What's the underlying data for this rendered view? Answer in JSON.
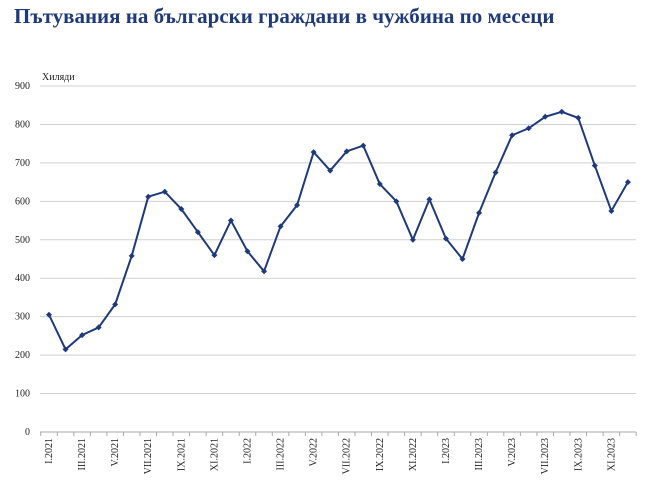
{
  "title": "Пътувания на български граждани в чужбина по месеци",
  "chart_data": {
    "type": "line",
    "title": "Пътувания на български граждани в чужбина по месеци",
    "ylabel": "Хиляди",
    "xlabel": "",
    "ylim": [
      0,
      900
    ],
    "yticks": [
      0,
      100,
      200,
      300,
      400,
      500,
      600,
      700,
      800,
      900
    ],
    "grid": true,
    "legend": "none",
    "x_tick_labels": [
      "I.2021",
      "III.2021",
      "V.2021",
      "VII.2021",
      "IX.2021",
      "XI.2021",
      "I.2022",
      "III.2022",
      "V.2022",
      "VII.2022",
      "IX.2022",
      "XI.2022",
      "I.2023",
      "III.2023",
      "V.2023",
      "VII.2023",
      "IX.2023",
      "XI.2023"
    ],
    "series": [
      {
        "name": "Пътувания",
        "color": "#1f3a7a",
        "values": [
          305,
          215,
          252,
          272,
          332,
          458,
          612,
          625,
          580,
          520,
          460,
          550,
          470,
          418,
          535,
          590,
          728,
          680,
          730,
          745,
          645,
          600,
          500,
          605,
          503,
          450,
          570,
          675,
          772,
          790,
          820,
          833,
          817,
          693,
          575,
          650
        ]
      }
    ]
  }
}
